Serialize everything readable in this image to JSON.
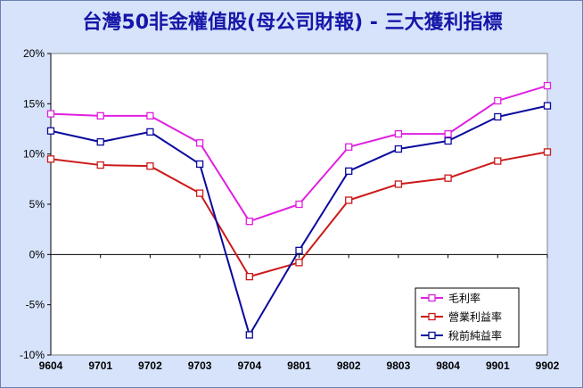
{
  "chart_data": {
    "type": "line",
    "title": "台灣50非金權值股(母公司財報) - 三大獲利指標",
    "categories": [
      "9604",
      "9701",
      "9702",
      "9703",
      "9704",
      "9801",
      "9802",
      "9803",
      "9804",
      "9901",
      "9902"
    ],
    "ylim": [
      -10,
      20
    ],
    "yticks": [
      -10,
      -5,
      0,
      5,
      10,
      15,
      20
    ],
    "ytick_labels": [
      "-10%",
      "-5%",
      "0%",
      "5%",
      "10%",
      "15%",
      "20%"
    ],
    "grid": false,
    "legend_position": "bottom-right",
    "series": [
      {
        "name": "毛利率",
        "color": "#e020e0",
        "values": [
          14.0,
          13.8,
          13.8,
          11.1,
          3.3,
          5.0,
          10.7,
          12.0,
          12.0,
          15.3,
          16.8
        ]
      },
      {
        "name": "營業利益率",
        "color": "#cc1a1a",
        "values": [
          9.5,
          8.9,
          8.8,
          6.1,
          -2.2,
          -0.8,
          5.4,
          7.0,
          7.6,
          9.3,
          10.2
        ]
      },
      {
        "name": "稅前純益率",
        "color": "#0a0a9e",
        "values": [
          12.3,
          11.2,
          12.2,
          9.0,
          -8.0,
          0.4,
          8.3,
          10.5,
          11.3,
          13.7,
          14.8
        ]
      }
    ]
  }
}
